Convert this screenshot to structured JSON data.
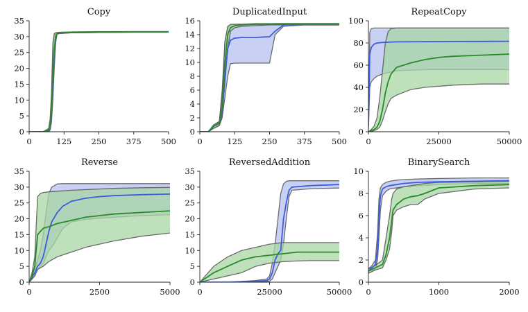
{
  "colors": {
    "blue_line": "#3b5ddb",
    "blue_band": "#b5c0ef",
    "green_line": "#2a8a2a",
    "green_band": "#a8d6a4",
    "band_edge": "#555555"
  },
  "chart_data": [
    {
      "type": "line",
      "title": "Copy",
      "xlim": [
        0,
        500
      ],
      "ylim": [
        0,
        35
      ],
      "xticks": [
        0,
        125,
        250,
        375,
        500
      ],
      "yticks": [
        0,
        5,
        10,
        15,
        20,
        25,
        30,
        35
      ],
      "series": [
        {
          "color": "blue",
          "x": [
            0,
            50,
            70,
            75,
            80,
            85,
            90,
            95,
            100,
            110,
            150,
            250,
            375,
            500
          ],
          "y": [
            0,
            0,
            0.3,
            1,
            5,
            15,
            25,
            30,
            31,
            31.2,
            31.3,
            31.4,
            31.5,
            31.5
          ],
          "lower": [
            0,
            0,
            0,
            0.5,
            3,
            10,
            20,
            28,
            30.8,
            31,
            31.2,
            31.3,
            31.4,
            31.4
          ],
          "upper": [
            0,
            0,
            0.8,
            3,
            10,
            25,
            30.5,
            31,
            31.2,
            31.3,
            31.4,
            31.5,
            31.6,
            31.6
          ]
        },
        {
          "color": "green",
          "x": [
            0,
            50,
            70,
            75,
            80,
            85,
            90,
            95,
            100,
            110,
            150,
            250,
            375,
            500
          ],
          "y": [
            0,
            0,
            0.5,
            1.5,
            6,
            18,
            26,
            30,
            31,
            31.2,
            31.3,
            31.4,
            31.5,
            31.5
          ],
          "lower": [
            0,
            0,
            0.2,
            0.8,
            4,
            14,
            24,
            29,
            30.8,
            31,
            31.2,
            31.3,
            31.4,
            31.4
          ],
          "upper": [
            0,
            0,
            1,
            4,
            12,
            28,
            31,
            31.2,
            31.3,
            31.4,
            31.5,
            31.6,
            31.6,
            31.6
          ]
        }
      ]
    },
    {
      "type": "line",
      "title": "DuplicatedInput",
      "xlim": [
        0,
        500
      ],
      "ylim": [
        0,
        16
      ],
      "xticks": [
        0,
        125,
        250,
        375,
        500
      ],
      "yticks": [
        0,
        2,
        4,
        6,
        8,
        10,
        12,
        14,
        16
      ],
      "series": [
        {
          "color": "blue",
          "x": [
            0,
            30,
            50,
            70,
            80,
            90,
            100,
            110,
            125,
            150,
            200,
            250,
            270,
            300,
            375,
            500
          ],
          "y": [
            0,
            0,
            0.8,
            1.2,
            3,
            8,
            12,
            13.2,
            13.5,
            13.6,
            13.6,
            13.7,
            14.5,
            15.4,
            15.5,
            15.5
          ],
          "lower": [
            0,
            0,
            0.5,
            0.9,
            2,
            5,
            8,
            9.8,
            9.9,
            9.9,
            9.9,
            9.9,
            14,
            15.2,
            15.4,
            15.4
          ],
          "upper": [
            0,
            0,
            1,
            1.5,
            6,
            13,
            15,
            15.4,
            15.5,
            15.5,
            15.5,
            15.5,
            15.6,
            15.6,
            15.6,
            15.6
          ]
        },
        {
          "color": "green",
          "x": [
            0,
            30,
            50,
            70,
            80,
            90,
            100,
            110,
            125,
            150,
            200,
            250,
            300,
            375,
            500
          ],
          "y": [
            0,
            0,
            0.8,
            1.2,
            3.5,
            10,
            14,
            15,
            15.3,
            15.4,
            15.5,
            15.5,
            15.5,
            15.5,
            15.5
          ],
          "lower": [
            0,
            0,
            0.5,
            0.9,
            2.5,
            7,
            12,
            14.5,
            15,
            15.2,
            15.3,
            15.4,
            15.4,
            15.4,
            15.4
          ],
          "upper": [
            0,
            0,
            1,
            1.4,
            5,
            13,
            15.2,
            15.5,
            15.5,
            15.5,
            15.6,
            15.6,
            15.6,
            15.6,
            15.6
          ]
        }
      ]
    },
    {
      "type": "line",
      "title": "RepeatCopy",
      "xlim": [
        0,
        50000
      ],
      "ylim": [
        0,
        100
      ],
      "xticks": [
        0,
        25000,
        50000
      ],
      "yticks": [
        0,
        20,
        40,
        60,
        80,
        100
      ],
      "series": [
        {
          "color": "blue",
          "x": [
            0,
            500,
            1000,
            2000,
            3000,
            5000,
            10000,
            20000,
            30000,
            40000,
            50000
          ],
          "y": [
            5,
            70,
            76,
            79,
            80,
            80.5,
            81,
            81.2,
            81.3,
            81.4,
            81.5
          ],
          "lower": [
            2,
            40,
            45,
            48,
            50,
            52,
            55,
            56,
            56,
            56,
            56
          ],
          "upper": [
            10,
            90,
            93,
            93.5,
            93.5,
            93.5,
            93.5,
            93.5,
            93.5,
            93.5,
            93.5
          ]
        },
        {
          "color": "green",
          "x": [
            0,
            1000,
            2000,
            3000,
            4000,
            5000,
            6000,
            7000,
            8000,
            10000,
            15000,
            20000,
            25000,
            30000,
            40000,
            50000
          ],
          "y": [
            0,
            1,
            2,
            4,
            9,
            20,
            35,
            45,
            52,
            58,
            62,
            65,
            67,
            68,
            69,
            70
          ],
          "lower": [
            0,
            0.5,
            1,
            2,
            4,
            10,
            18,
            25,
            30,
            33,
            38,
            40,
            41,
            42,
            43,
            43
          ],
          "upper": [
            0,
            2,
            5,
            12,
            30,
            55,
            80,
            90,
            93,
            93.5,
            93.5,
            93.5,
            93.5,
            93.5,
            93.5,
            93.5
          ]
        }
      ]
    },
    {
      "type": "line",
      "title": "Reverse",
      "xlim": [
        0,
        5000
      ],
      "ylim": [
        0,
        35
      ],
      "xticks": [
        0,
        2500,
        5000
      ],
      "yticks": [
        0,
        5,
        10,
        15,
        20,
        25,
        30,
        35
      ],
      "series": [
        {
          "color": "blue",
          "x": [
            0,
            200,
            300,
            400,
            500,
            600,
            700,
            800,
            1000,
            1200,
            1500,
            2000,
            2500,
            3000,
            4000,
            5000
          ],
          "y": [
            0,
            3,
            5,
            6,
            8,
            12,
            16,
            19,
            22,
            24,
            25.5,
            26.5,
            27,
            27.3,
            27.6,
            27.8
          ],
          "lower": [
            0,
            2,
            4,
            5,
            6,
            8,
            10,
            11,
            14,
            17,
            19,
            19.8,
            20.2,
            20.5,
            21,
            21.3
          ],
          "upper": [
            0,
            4,
            7,
            10,
            15,
            22,
            28,
            30,
            31,
            31.1,
            31.1,
            31.1,
            31.1,
            31.1,
            31.1,
            31.1
          ]
        },
        {
          "color": "green",
          "x": [
            0,
            100,
            200,
            300,
            400,
            500,
            700,
            1000,
            1500,
            2000,
            2500,
            3000,
            4000,
            5000
          ],
          "y": [
            0,
            2,
            5,
            15,
            16,
            17,
            17.5,
            18.5,
            19.5,
            20.5,
            21,
            21.5,
            22,
            22.5
          ],
          "lower": [
            0,
            1,
            2,
            4,
            4.5,
            5,
            6.5,
            8,
            9.5,
            11,
            12,
            13,
            14.5,
            15.5
          ],
          "upper": [
            0,
            3,
            8,
            27,
            28,
            28.3,
            28.5,
            28.7,
            29,
            29.2,
            29.4,
            29.6,
            29.8,
            29.9
          ]
        }
      ]
    },
    {
      "type": "line",
      "title": "ReversedAddition",
      "xlim": [
        0,
        50000
      ],
      "ylim": [
        0,
        35
      ],
      "xticks": [
        0,
        25000,
        50000
      ],
      "yticks": [
        0,
        5,
        10,
        15,
        20,
        25,
        30,
        35
      ],
      "series": [
        {
          "color": "blue",
          "x": [
            0,
            10000,
            20000,
            24000,
            25000,
            26000,
            27000,
            28000,
            29000,
            30000,
            31000,
            32000,
            33000,
            40000,
            50000
          ],
          "y": [
            0,
            0,
            0.3,
            0.5,
            1,
            3,
            7,
            9,
            10,
            20,
            25,
            29,
            30,
            30.5,
            30.8
          ],
          "lower": [
            0,
            0,
            0,
            0.2,
            0.3,
            1,
            3,
            5,
            7,
            12,
            20,
            27,
            29,
            29.5,
            29.7
          ],
          "upper": [
            0,
            0,
            0.5,
            1,
            2,
            6,
            12,
            20,
            28,
            31,
            31.8,
            32,
            32,
            32,
            32
          ]
        },
        {
          "color": "green",
          "x": [
            0,
            5000,
            10000,
            15000,
            20000,
            25000,
            30000,
            35000,
            40000,
            50000
          ],
          "y": [
            0,
            3,
            5,
            7,
            8,
            8.5,
            9,
            9.5,
            9.5,
            9.5
          ],
          "lower": [
            0,
            1,
            2,
            3,
            5,
            6,
            6.5,
            6.7,
            6.8,
            6.8
          ],
          "upper": [
            0,
            5,
            8,
            10,
            11,
            12,
            12.5,
            12.5,
            12.5,
            12.5
          ]
        }
      ]
    },
    {
      "type": "line",
      "title": "BinarySearch",
      "xlim": [
        0,
        2000
      ],
      "ylim": [
        0,
        10
      ],
      "xticks": [
        0,
        1000,
        2000
      ],
      "yticks": [
        0,
        2,
        4,
        6,
        8,
        10
      ],
      "series": [
        {
          "color": "blue",
          "x": [
            0,
            50,
            100,
            130,
            150,
            170,
            200,
            250,
            300,
            400,
            500,
            700,
            1000,
            1500,
            2000
          ],
          "y": [
            1,
            1.3,
            1.6,
            3,
            6,
            7.8,
            8.4,
            8.6,
            8.7,
            8.8,
            8.9,
            9,
            9.05,
            9.1,
            9.15
          ],
          "lower": [
            0.8,
            1,
            1.2,
            2,
            4,
            6.5,
            7.8,
            8.2,
            8.4,
            8.5,
            8.6,
            8.7,
            8.8,
            8.9,
            8.9
          ],
          "upper": [
            1.2,
            1.5,
            2,
            4.5,
            7.5,
            8.5,
            8.8,
            9,
            9.1,
            9.2,
            9.25,
            9.3,
            9.35,
            9.4,
            9.4
          ]
        },
        {
          "color": "green",
          "x": [
            0,
            100,
            200,
            250,
            300,
            330,
            350,
            400,
            500,
            600,
            700,
            800,
            1000,
            1500,
            2000
          ],
          "y": [
            1,
            1.3,
            1.6,
            2.5,
            4,
            5.5,
            6.5,
            7,
            7.5,
            7.7,
            7.8,
            8,
            8.5,
            8.7,
            8.8
          ],
          "lower": [
            0.8,
            1.1,
            1.3,
            2,
            3,
            4.5,
            6,
            6.5,
            6.8,
            7,
            7,
            7.5,
            8,
            8.4,
            8.5
          ],
          "upper": [
            1.2,
            1.5,
            2,
            4,
            6,
            7.5,
            8,
            8.4,
            8.6,
            8.7,
            8.8,
            8.9,
            9,
            9.05,
            9.1
          ]
        }
      ]
    }
  ]
}
